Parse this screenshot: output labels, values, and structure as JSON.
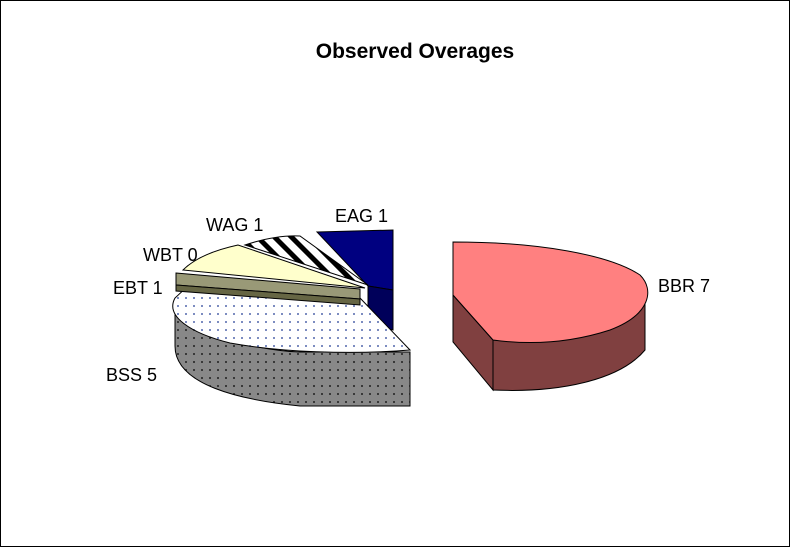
{
  "chart_data": {
    "type": "pie",
    "title": "Observed Overages",
    "is_3d": true,
    "exploded": true,
    "slices": [
      {
        "label": "EAG",
        "value": 1,
        "display": "EAG 1",
        "color": "#000080",
        "pattern": "solid"
      },
      {
        "label": "BBR",
        "value": 7,
        "display": "BBR 7",
        "color": "#ff8080",
        "pattern": "solid"
      },
      {
        "label": "BSS",
        "value": 5,
        "display": "BSS 5",
        "color": "#ffffff",
        "pattern": "dotted"
      },
      {
        "label": "EBT",
        "value": 1,
        "display": "EBT 1",
        "color": "#999977",
        "pattern": "solid"
      },
      {
        "label": "WBT",
        "value": 0,
        "display": "WBT 0",
        "color": "#ffffcc",
        "pattern": "solid"
      },
      {
        "label": "WAG",
        "value": 1,
        "display": "WAG 1",
        "color": "#ffffff",
        "pattern": "diagonal-stripes"
      }
    ]
  }
}
